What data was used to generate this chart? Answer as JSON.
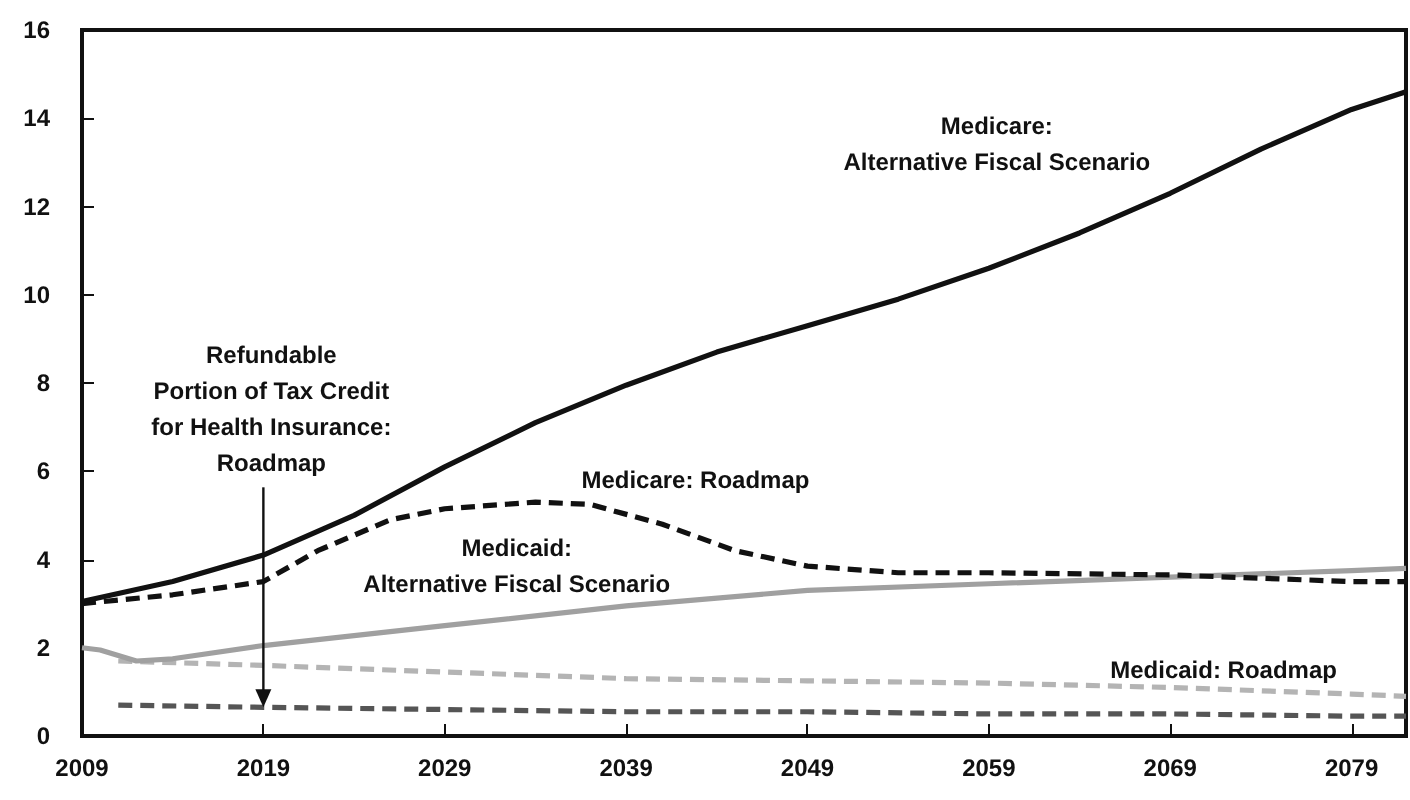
{
  "chart_data": {
    "type": "line",
    "xlim": [
      2009,
      2082
    ],
    "xticks": [
      2009,
      2019,
      2029,
      2039,
      2049,
      2059,
      2069,
      2079
    ],
    "ylim": [
      0,
      16
    ],
    "yticks": [
      0,
      2,
      4,
      6,
      8,
      10,
      12,
      14,
      16
    ],
    "grid": false,
    "marker": "none",
    "series": [
      {
        "name": "Medicare:\nAlternative Fiscal Scenario",
        "color": "#111111",
        "line_style": "solid",
        "x": [
          2009,
          2014,
          2019,
          2024,
          2029,
          2034,
          2039,
          2044,
          2049,
          2054,
          2059,
          2064,
          2069,
          2074,
          2079,
          2082
        ],
        "values": [
          3.05,
          3.5,
          4.1,
          5.0,
          6.1,
          7.1,
          7.95,
          8.7,
          9.3,
          9.9,
          10.6,
          11.4,
          12.3,
          13.3,
          14.2,
          14.6
        ]
      },
      {
        "name": "Medicare: Roadmap",
        "color": "#111111",
        "line_style": "dashed",
        "x": [
          2009,
          2014,
          2019,
          2022,
          2026,
          2029,
          2034,
          2037,
          2041,
          2045,
          2049,
          2054,
          2059,
          2069,
          2079,
          2082
        ],
        "values": [
          3.0,
          3.2,
          3.5,
          4.2,
          4.9,
          5.15,
          5.3,
          5.25,
          4.8,
          4.2,
          3.85,
          3.7,
          3.7,
          3.65,
          3.5,
          3.5
        ]
      },
      {
        "name": "Medicaid:\nAlternative Fiscal Scenario",
        "color": "#a0a0a0",
        "line_style": "solid",
        "x": [
          2009,
          2010,
          2012,
          2014,
          2019,
          2029,
          2039,
          2049,
          2059,
          2069,
          2079,
          2082
        ],
        "values": [
          2.0,
          1.95,
          1.7,
          1.75,
          2.05,
          2.5,
          2.95,
          3.3,
          3.45,
          3.6,
          3.75,
          3.8
        ]
      },
      {
        "name": "Medicaid: Roadmap",
        "color": "#b4b4b4",
        "line_style": "dashed",
        "x": [
          2011,
          2019,
          2029,
          2039,
          2049,
          2059,
          2069,
          2079,
          2082
        ],
        "values": [
          1.7,
          1.6,
          1.45,
          1.3,
          1.25,
          1.2,
          1.1,
          0.95,
          0.9
        ]
      },
      {
        "name": "Refundable\nPortion of Tax Credit\nfor Health Insurance:\nRoadmap",
        "color": "#555555",
        "line_style": "dashed",
        "x": [
          2011,
          2019,
          2029,
          2039,
          2049,
          2059,
          2069,
          2079,
          2082
        ],
        "values": [
          0.7,
          0.65,
          0.6,
          0.55,
          0.55,
          0.5,
          0.5,
          0.45,
          0.45
        ]
      }
    ]
  }
}
